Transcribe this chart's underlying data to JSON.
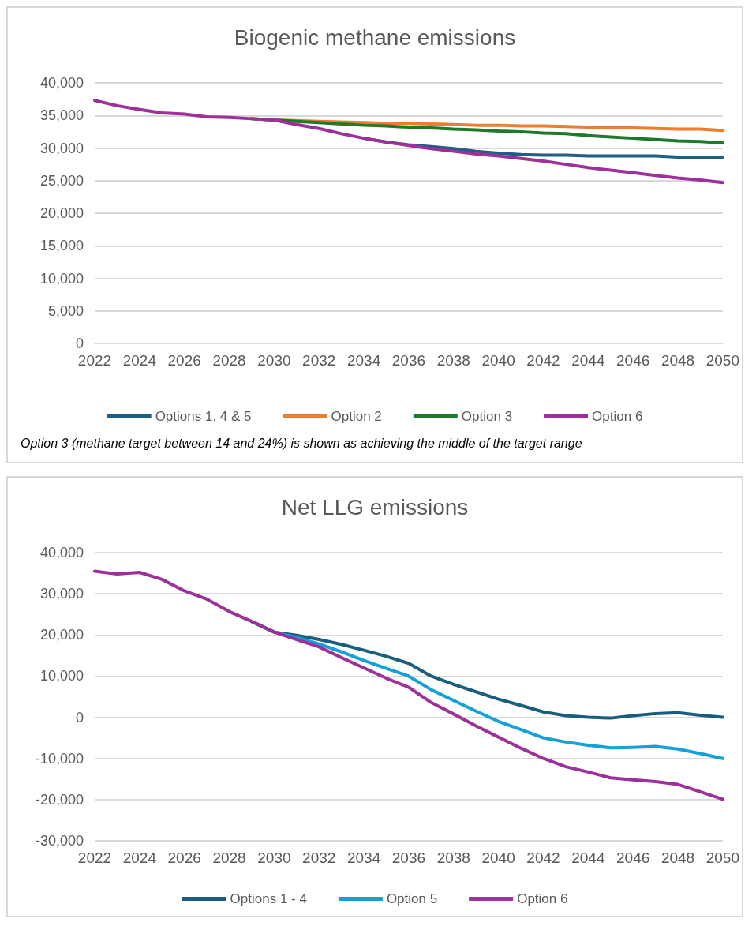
{
  "chart_data": [
    {
      "type": "line",
      "title": "Biogenic methane emissions",
      "x": [
        2022,
        2023,
        2024,
        2025,
        2026,
        2027,
        2028,
        2029,
        2030,
        2031,
        2032,
        2033,
        2034,
        2035,
        2036,
        2037,
        2038,
        2039,
        2040,
        2041,
        2042,
        2043,
        2044,
        2045,
        2046,
        2047,
        2048,
        2049,
        2050
      ],
      "xlim": [
        2022,
        2050
      ],
      "xticks": [
        2022,
        2024,
        2026,
        2028,
        2030,
        2032,
        2034,
        2036,
        2038,
        2040,
        2042,
        2044,
        2046,
        2048,
        2050
      ],
      "ylim": [
        0,
        40000
      ],
      "yticks": [
        {
          "value": 0,
          "label": "0"
        },
        {
          "value": 5000,
          "label": "5,000"
        },
        {
          "value": 10000,
          "label": "10,000"
        },
        {
          "value": 15000,
          "label": "15,000"
        },
        {
          "value": 20000,
          "label": "20,000"
        },
        {
          "value": 25000,
          "label": "25,000"
        },
        {
          "value": 30000,
          "label": "30,000"
        },
        {
          "value": 35000,
          "label": "35,000"
        },
        {
          "value": 40000,
          "label": "40,000"
        }
      ],
      "grid": "y",
      "legend": "bottom",
      "marker": "none",
      "line_style": "solid",
      "annotations": [
        "Option 3 (methane target between 14 and 24%) is shown as achieving the middle of the target range"
      ],
      "series": [
        {
          "name": "Options 1, 4 & 5",
          "color": "#1f5f82",
          "values": [
            null,
            null,
            null,
            null,
            null,
            null,
            null,
            null,
            null,
            null,
            null,
            null,
            31500,
            30900,
            30500,
            30200,
            29900,
            29500,
            29200,
            29000,
            28900,
            28900,
            28800,
            28800,
            28800,
            28800,
            28600,
            28600,
            28600
          ]
        },
        {
          "name": "Option 2",
          "color": "#ed7d31",
          "values": [
            null,
            null,
            null,
            null,
            null,
            null,
            null,
            34500,
            34300,
            34200,
            34100,
            34000,
            33900,
            33800,
            33800,
            33700,
            33600,
            33500,
            33500,
            33400,
            33400,
            33300,
            33200,
            33200,
            33100,
            33000,
            32900,
            32900,
            32700
          ]
        },
        {
          "name": "Option 3",
          "color": "#1e7a2a",
          "values": [
            null,
            null,
            null,
            null,
            null,
            null,
            null,
            34500,
            34300,
            34100,
            33900,
            33700,
            33500,
            33400,
            33200,
            33100,
            32900,
            32800,
            32600,
            32500,
            32300,
            32200,
            31900,
            31700,
            31500,
            31300,
            31100,
            31000,
            30800
          ]
        },
        {
          "name": "Option 6",
          "color": "#9e3099",
          "values": [
            37300,
            36500,
            35900,
            35400,
            35200,
            34800,
            34700,
            34500,
            34300,
            33600,
            33000,
            32200,
            31500,
            30900,
            30400,
            29900,
            29500,
            29100,
            28800,
            28400,
            28000,
            27500,
            27000,
            26600,
            26200,
            25800,
            25400,
            25100,
            24700
          ]
        }
      ]
    },
    {
      "type": "line",
      "title": "Net LLG emissions",
      "x": [
        2022,
        2023,
        2024,
        2025,
        2026,
        2027,
        2028,
        2029,
        2030,
        2031,
        2032,
        2033,
        2034,
        2035,
        2036,
        2037,
        2038,
        2039,
        2040,
        2041,
        2042,
        2043,
        2044,
        2045,
        2046,
        2047,
        2048,
        2049,
        2050
      ],
      "xlim": [
        2022,
        2050
      ],
      "xticks": [
        2022,
        2024,
        2026,
        2028,
        2030,
        2032,
        2034,
        2036,
        2038,
        2040,
        2042,
        2044,
        2046,
        2048,
        2050
      ],
      "ylim": [
        -30000,
        40000
      ],
      "yticks": [
        {
          "value": -30000,
          "label": "-30,000"
        },
        {
          "value": -20000,
          "label": "-20,000"
        },
        {
          "value": -10000,
          "label": "-10,000"
        },
        {
          "value": 0,
          "label": "0"
        },
        {
          "value": 10000,
          "label": "10,000"
        },
        {
          "value": 20000,
          "label": "20,000"
        },
        {
          "value": 30000,
          "label": "30,000"
        },
        {
          "value": 40000,
          "label": "40,000"
        }
      ],
      "grid": "y",
      "legend": "bottom",
      "marker": "none",
      "line_style": "solid",
      "series": [
        {
          "name": "Options 1 - 4",
          "color": "#1a5e7e",
          "values": [
            null,
            null,
            null,
            null,
            null,
            null,
            null,
            23300,
            20700,
            19900,
            18900,
            17700,
            16300,
            14800,
            13100,
            10000,
            8000,
            6200,
            4400,
            2900,
            1300,
            400,
            0,
            -200,
            400,
            900,
            1100,
            500,
            0
          ]
        },
        {
          "name": "Option 5",
          "color": "#14a0d8",
          "values": [
            null,
            null,
            null,
            null,
            null,
            null,
            null,
            23300,
            20700,
            19400,
            17800,
            15900,
            13800,
            11900,
            10000,
            6700,
            4100,
            1500,
            -1000,
            -3000,
            -5000,
            -6000,
            -6800,
            -7400,
            -7300,
            -7100,
            -7700,
            -8800,
            -10000
          ]
        },
        {
          "name": "Option 6",
          "color": "#9e3099",
          "values": [
            35500,
            34800,
            35200,
            33500,
            30700,
            28700,
            25700,
            23300,
            20700,
            18900,
            17100,
            14500,
            12000,
            9500,
            7300,
            3600,
            800,
            -2100,
            -4800,
            -7500,
            -10000,
            -12000,
            -13300,
            -14700,
            -15200,
            -15600,
            -16300,
            -18100,
            -19900
          ]
        }
      ]
    }
  ]
}
